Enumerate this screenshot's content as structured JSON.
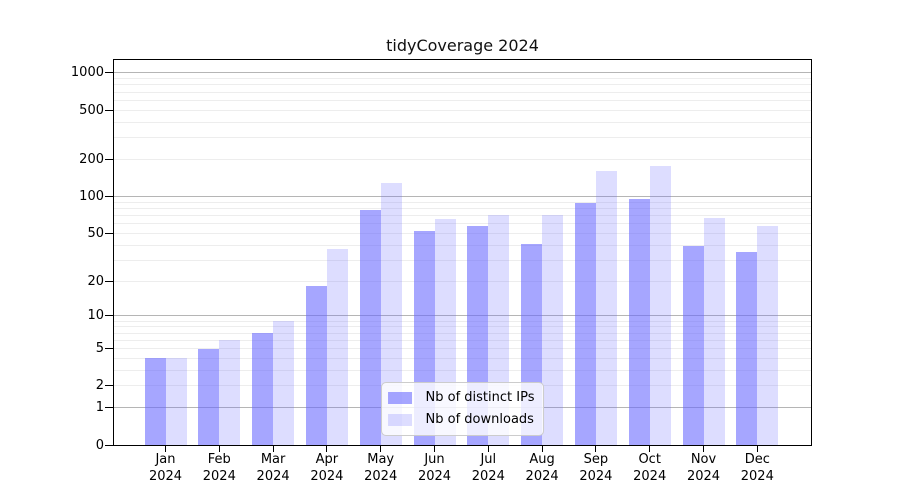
{
  "chart_data": {
    "type": "bar",
    "title": "tidyCoverage 2024",
    "categories": [
      "Jan 2024",
      "Feb 2024",
      "Mar 2024",
      "Apr 2024",
      "May 2024",
      "Jun 2024",
      "Jul 2024",
      "Aug 2024",
      "Sep 2024",
      "Oct 2024",
      "Nov 2024",
      "Dec 2024"
    ],
    "series": [
      {
        "name": "Nb of distinct IPs",
        "color": "rgba(102,102,255,0.58)",
        "values": [
          4,
          5,
          7,
          18,
          78,
          52,
          57,
          41,
          88,
          95,
          39,
          35
        ]
      },
      {
        "name": "Nb of downloads",
        "color": "rgba(102,102,255,0.22)",
        "values": [
          4,
          6,
          9,
          37,
          128,
          66,
          71,
          70,
          160,
          178,
          67,
          57
        ]
      }
    ],
    "yscale": "log1p",
    "y_ticks": [
      0,
      1,
      2,
      5,
      10,
      20,
      50,
      100,
      200,
      500,
      1000
    ],
    "ylim": [
      0,
      1240
    ],
    "grid": true,
    "legend_position": "lower center",
    "colors": {
      "bar_base": "#6666ff",
      "major_grid": "#b5b5b5",
      "minor_grid": "#ededed",
      "axis": "#000000",
      "background": "#ffffff"
    }
  }
}
